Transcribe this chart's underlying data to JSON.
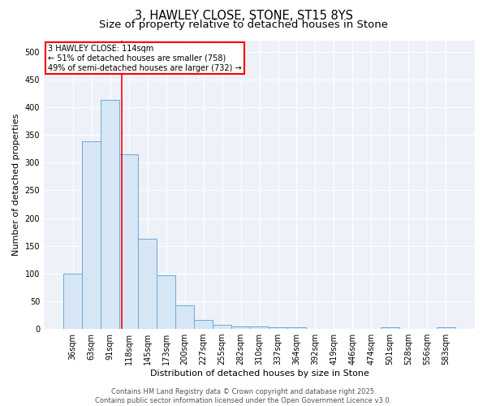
{
  "title1": "3, HAWLEY CLOSE, STONE, ST15 8YS",
  "title2": "Size of property relative to detached houses in Stone",
  "xlabel": "Distribution of detached houses by size in Stone",
  "ylabel": "Number of detached properties",
  "bar_labels": [
    "36sqm",
    "63sqm",
    "91sqm",
    "118sqm",
    "145sqm",
    "173sqm",
    "200sqm",
    "227sqm",
    "255sqm",
    "282sqm",
    "310sqm",
    "337sqm",
    "364sqm",
    "392sqm",
    "419sqm",
    "446sqm",
    "474sqm",
    "501sqm",
    "528sqm",
    "556sqm",
    "583sqm"
  ],
  "bar_values": [
    100,
    338,
    413,
    315,
    163,
    97,
    43,
    16,
    8,
    5,
    5,
    3,
    3,
    0,
    0,
    0,
    0,
    3,
    0,
    0,
    3
  ],
  "bar_color": "#d6e6f5",
  "bar_edge_color": "#6aaad4",
  "vline_color": "red",
  "vline_pos": 2.64,
  "annotation_text": "3 HAWLEY CLOSE: 114sqm\n← 51% of detached houses are smaller (758)\n49% of semi-detached houses are larger (732) →",
  "annotation_box_color": "white",
  "annotation_box_edgecolor": "red",
  "ylim": [
    0,
    520
  ],
  "yticks": [
    0,
    50,
    100,
    150,
    200,
    250,
    300,
    350,
    400,
    450,
    500
  ],
  "background_color": "#ffffff",
  "plot_bg_color": "#eef2f8",
  "footer": "Contains HM Land Registry data © Crown copyright and database right 2025.\nContains public sector information licensed under the Open Government Licence v3.0.",
  "title_fontsize": 10.5,
  "subtitle_fontsize": 9.5,
  "label_fontsize": 8,
  "tick_fontsize": 7,
  "footer_fontsize": 6
}
